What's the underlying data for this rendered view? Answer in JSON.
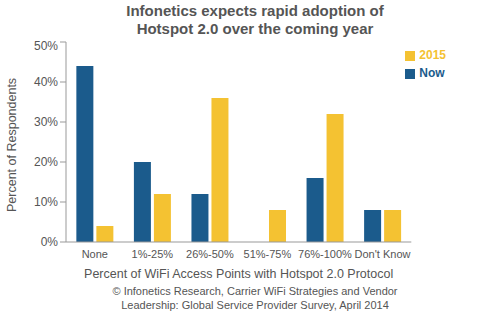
{
  "chart_data": {
    "type": "bar",
    "title": "Infonetics expects rapid adoption of\nHotspot 2.0 over the coming year",
    "x_label": "Percent of WiFi Access Points with Hotspot 2.0 Protocol",
    "y_label": "Percent of Respondents",
    "source": "© Infonetics Research, Carrier WiFi Strategies and Vendor\nLeadership: Global Service Provider Survey, April 2014",
    "categories": [
      "None",
      "1%-25%",
      "26%-50%",
      "51%-75%",
      "76%-100%",
      "Don't Know"
    ],
    "series": [
      {
        "name": "Now",
        "color": "#1b5b8c",
        "values": [
          44,
          20,
          12,
          0,
          16,
          8
        ]
      },
      {
        "name": "2015",
        "color": "#f4c232",
        "values": [
          4,
          12,
          36,
          8,
          32,
          8
        ]
      }
    ],
    "ylim": [
      0,
      50
    ],
    "yticks": [
      {
        "value": 0,
        "label": "0%"
      },
      {
        "value": 10,
        "label": "10%"
      },
      {
        "value": 20,
        "label": "20%"
      },
      {
        "value": 30,
        "label": "30%"
      },
      {
        "value": 40,
        "label": "40%"
      },
      {
        "value": 50,
        "label": "50%"
      }
    ],
    "legend": "upper right",
    "grid": false
  }
}
